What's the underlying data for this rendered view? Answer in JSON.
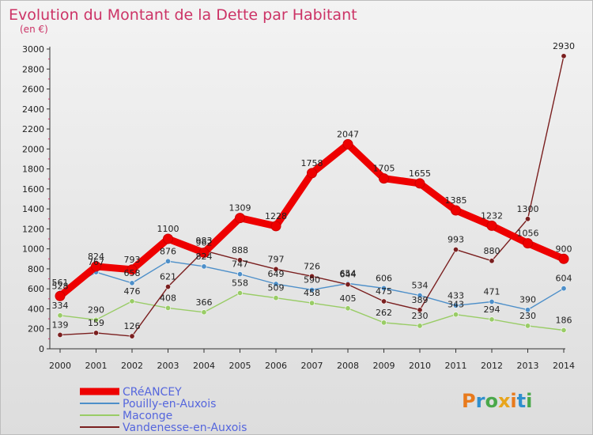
{
  "chart_data": {
    "type": "line",
    "title": "Evolution du Montant de la Dette par Habitant",
    "unit_label": "(en €)",
    "xlabel": "",
    "ylabel": "",
    "ylim": [
      0,
      3000
    ],
    "y_ticks": [
      0,
      200,
      400,
      600,
      800,
      1000,
      1200,
      1400,
      1600,
      1800,
      2000,
      2200,
      2400,
      2600,
      2800,
      3000
    ],
    "categories": [
      "2000",
      "2001",
      "2002",
      "2003",
      "2004",
      "2005",
      "2006",
      "2007",
      "2008",
      "2009",
      "2010",
      "2011",
      "2012",
      "2013",
      "2014"
    ],
    "grid": false,
    "legend_position": "bottom-left",
    "series": [
      {
        "name": "CRéANCEY",
        "color": "#ee0000",
        "emphasis": true,
        "values": [
          528,
          824,
          793,
          1100,
          962,
          1309,
          1228,
          1758,
          2047,
          1705,
          1655,
          1385,
          1232,
          1056,
          900
        ]
      },
      {
        "name": "Pouilly-en-Auxois",
        "color": "#4d8fc9",
        "emphasis": false,
        "values": [
          561,
          767,
          658,
          876,
          824,
          747,
          649,
          590,
          654,
          606,
          534,
          433,
          471,
          390,
          604
        ]
      },
      {
        "name": "Maconge",
        "color": "#99cc66",
        "emphasis": false,
        "values": [
          334,
          290,
          476,
          408,
          366,
          558,
          509,
          458,
          405,
          262,
          230,
          343,
          294,
          230,
          186
        ]
      },
      {
        "name": "Vandenesse-en-Auxois",
        "color": "#7a1f1f",
        "emphasis": false,
        "values": [
          139,
          159,
          126,
          621,
          983,
          888,
          797,
          726,
          644,
          475,
          389,
          993,
          880,
          1300,
          2930
        ]
      }
    ]
  },
  "branding": {
    "text": "Proxiti",
    "colors": [
      "#e87a1c",
      "#2f8fce",
      "#4aa84a",
      "#e8a51c"
    ]
  }
}
